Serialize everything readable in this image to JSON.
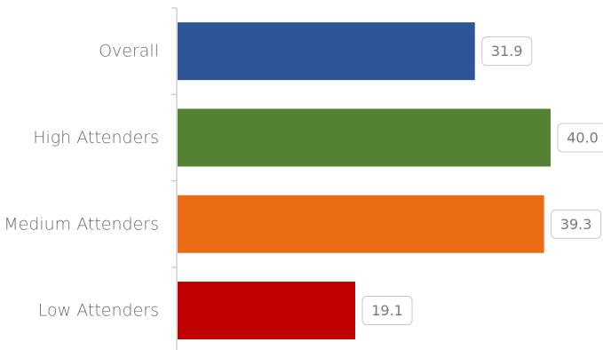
{
  "chart_data": {
    "type": "bar",
    "orientation": "horizontal",
    "title": "",
    "xlabel": "",
    "ylabel": "",
    "categories": [
      "Overall",
      "High Attenders",
      "Medium Attenders",
      "Low Attenders"
    ],
    "values": [
      31.9,
      40.0,
      39.3,
      19.1
    ],
    "value_labels": [
      "31.9",
      "40.0",
      "39.3",
      "19.1"
    ],
    "colors": [
      "#2e5597",
      "#548235",
      "#e96b13",
      "#c00000"
    ],
    "xlim": [
      0,
      40.6
    ],
    "grid": false,
    "legend": "none"
  }
}
